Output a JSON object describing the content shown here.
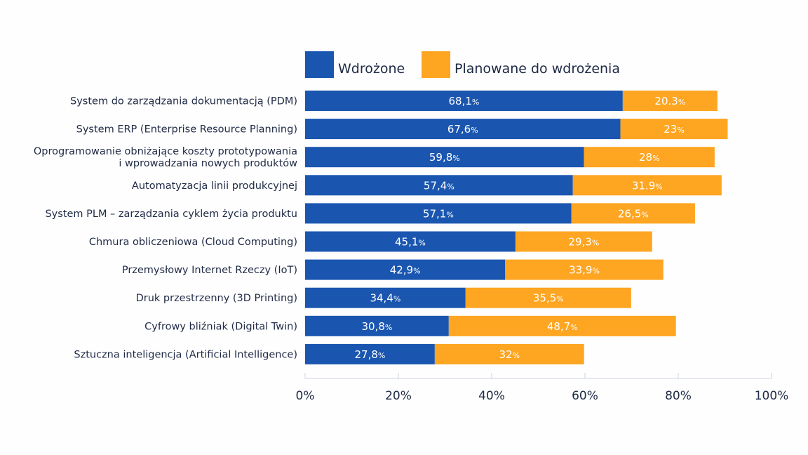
{
  "chart_data": {
    "type": "bar",
    "orientation": "horizontal",
    "stacked": true,
    "legend": {
      "placement": "top",
      "entries": [
        "Wdrożone",
        "Planowane do wdrożenia"
      ]
    },
    "categories": [
      [
        "System do zarządzania dokumentacją (PDM)"
      ],
      [
        "System ERP (Enterprise Resource Planning)"
      ],
      [
        "Oprogramowanie obniżające koszty prototypowania",
        "i wprowadzania nowych produktów"
      ],
      [
        "Automatyzacja linii produkcyjnej"
      ],
      [
        "System PLM – zarządzania cyklem życia produktu"
      ],
      [
        "Chmura obliczeniowa (Cloud Computing)"
      ],
      [
        "Przemysłowy Internet Rzeczy (IoT)"
      ],
      [
        "Druk przestrzenny (3D Printing)"
      ],
      [
        "Cyfrowy bliźniak (Digital Twin)"
      ],
      [
        "Sztuczna inteligencja (Artificial Intelligence)"
      ]
    ],
    "series": [
      {
        "name": "Wdrożone",
        "color": "#1a56b0",
        "values": [
          68.1,
          67.6,
          59.8,
          57.4,
          57.1,
          45.1,
          42.9,
          34.4,
          30.8,
          27.8
        ],
        "labels": [
          "68,1",
          "67,6",
          "59,8",
          "57,4",
          "57,1",
          "45,1",
          "42,9",
          "34,4",
          "30,8",
          "27,8"
        ]
      },
      {
        "name": "Planowane do wdrożenia",
        "color": "#fea521",
        "values": [
          20.3,
          23,
          28,
          31.9,
          26.5,
          29.3,
          33.9,
          35.5,
          48.7,
          32
        ],
        "labels": [
          "20.3",
          "23",
          "28",
          "31.9",
          "26,5",
          "29,3",
          "33,9",
          "35,5",
          "48,7",
          "32"
        ]
      }
    ],
    "value_suffix": "%",
    "xlim": [
      0,
      100
    ],
    "xticks": [
      0,
      20,
      40,
      60,
      80,
      100
    ],
    "xtick_labels": [
      "0%",
      "20%",
      "40%",
      "60%",
      "80%",
      "100%"
    ],
    "grid": false
  }
}
